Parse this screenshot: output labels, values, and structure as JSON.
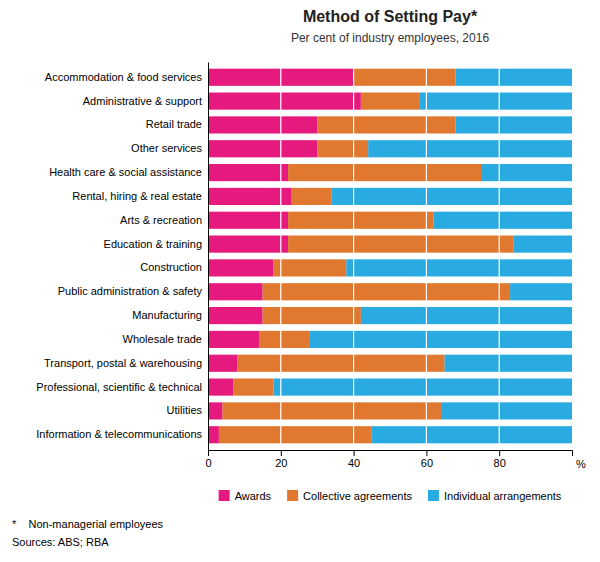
{
  "chart_data": {
    "type": "bar",
    "orientation": "horizontal",
    "stacked": true,
    "title": "Method of Setting Pay*",
    "subtitle": "Per cent of industry employees, 2016",
    "xlabel": "%",
    "annotations": [
      "*    Non-managerial employees",
      "Sources: ABS; RBA"
    ],
    "categories": [
      "Accommodation & food services",
      "Administrative & support",
      "Retail trade",
      "Other services",
      "Health care & social assistance",
      "Rental, hiring & real estate",
      "Arts & recreation",
      "Education & training",
      "Construction",
      "Public administration & safety",
      "Manufacturing",
      "Wholesale trade",
      "Transport, postal & warehousing",
      "Professional, scientific & technical",
      "Utilities",
      "Information & telecommunications"
    ],
    "series": [
      {
        "name": "Awards",
        "color": "#e5197e",
        "values": [
          40,
          42,
          30,
          30,
          22,
          23,
          22,
          22,
          18,
          15,
          15,
          14,
          8,
          7,
          4,
          3
        ]
      },
      {
        "name": "Collective agreements",
        "color": "#e07830",
        "values": [
          28,
          16,
          38,
          14,
          53,
          11,
          40,
          62,
          20,
          68,
          27,
          14,
          57,
          11,
          60,
          42
        ]
      },
      {
        "name": "Individual arrangements",
        "color": "#29aae1",
        "values": [
          32,
          42,
          32,
          56,
          25,
          66,
          38,
          16,
          62,
          17,
          58,
          72,
          35,
          82,
          36,
          55
        ]
      }
    ],
    "xlim": [
      0,
      100
    ],
    "xticks": [
      0,
      20,
      40,
      60,
      80
    ],
    "grid": true,
    "legend": "bottom"
  }
}
